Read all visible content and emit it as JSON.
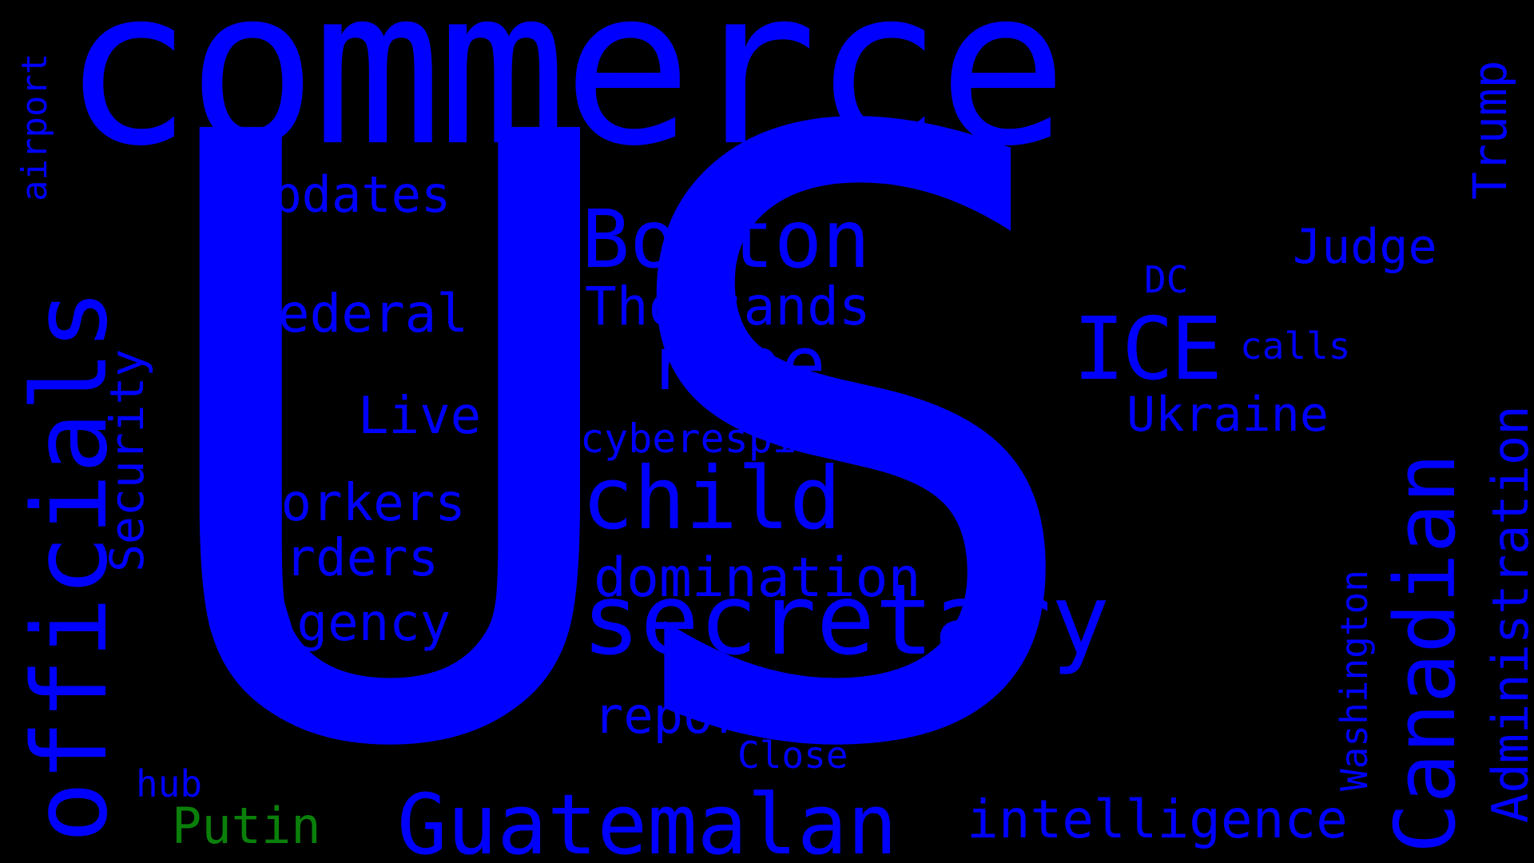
{
  "cloud": {
    "background": "#000000",
    "primary_color": "#0000ff",
    "accent_color": "#0a7f0a",
    "words": {
      "us": "US",
      "commerce": "commerce",
      "officials": "officials",
      "secretary": "secretary",
      "canadian": "Canadian",
      "guatemalan": "Guatemalan",
      "boston": "Boston",
      "ice": "ICE",
      "child": "child",
      "rape": "rape",
      "intelligence": "intelligence",
      "domination": "domination",
      "thousands": "Thousands",
      "federal": "Federal",
      "agency": "Agency",
      "workers": "Workers",
      "orders": "Orders",
      "updates": "Updates",
      "live": "Live",
      "reports": "reports",
      "ukraine": "Ukraine",
      "judge": "Judge",
      "putin": "Putin",
      "administration": "Administration",
      "security": "Security",
      "trump": "Trump",
      "cyberespionage": "cyberespionage",
      "washington": "Washington",
      "close": "Close",
      "calls": "calls",
      "dc": "DC",
      "hub": "hub",
      "airport": "airport"
    }
  }
}
